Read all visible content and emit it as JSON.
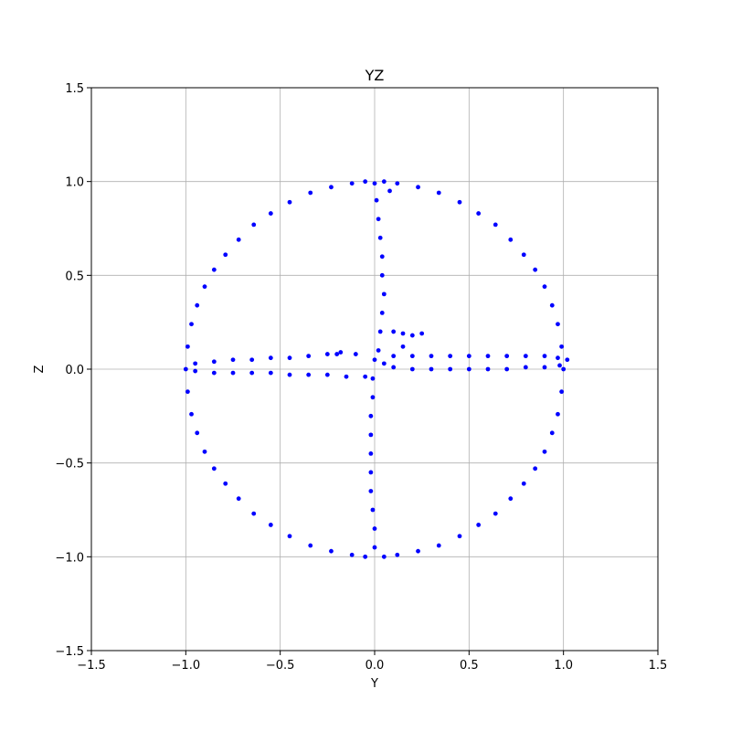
{
  "chart_data": {
    "type": "scatter",
    "title": "YZ",
    "xlabel": "Y",
    "ylabel": "Z",
    "xlim": [
      -1.5,
      1.5
    ],
    "ylim": [
      -1.5,
      1.5
    ],
    "xticks": [
      -1.5,
      -1.0,
      -0.5,
      0.0,
      0.5,
      1.0,
      1.5
    ],
    "yticks": [
      -1.5,
      -1.0,
      -0.5,
      0.0,
      0.5,
      1.0,
      1.5
    ],
    "xtick_labels": [
      "−1.5",
      "−1.0",
      "−0.5",
      "0.0",
      "0.5",
      "1.0",
      "1.5"
    ],
    "ytick_labels": [
      "−1.5",
      "−1.0",
      "−0.5",
      "0.0",
      "0.5",
      "1.0",
      "1.5"
    ],
    "grid": true,
    "marker_color": "#0000ff",
    "series": [
      {
        "points": [
          [
            1.0,
            0.0
          ],
          [
            0.99,
            0.12
          ],
          [
            0.97,
            0.24
          ],
          [
            0.94,
            0.34
          ],
          [
            0.9,
            0.44
          ],
          [
            0.85,
            0.53
          ],
          [
            0.79,
            0.61
          ],
          [
            0.72,
            0.69
          ],
          [
            0.64,
            0.77
          ],
          [
            0.55,
            0.83
          ],
          [
            0.45,
            0.89
          ],
          [
            0.34,
            0.94
          ],
          [
            0.23,
            0.97
          ],
          [
            0.12,
            0.99
          ],
          [
            0.05,
            1.0
          ],
          [
            -0.05,
            1.0
          ],
          [
            -0.12,
            0.99
          ],
          [
            -0.23,
            0.97
          ],
          [
            -0.34,
            0.94
          ],
          [
            -0.45,
            0.89
          ],
          [
            -0.55,
            0.83
          ],
          [
            -0.64,
            0.77
          ],
          [
            -0.72,
            0.69
          ],
          [
            -0.79,
            0.61
          ],
          [
            -0.85,
            0.53
          ],
          [
            -0.9,
            0.44
          ],
          [
            -0.94,
            0.34
          ],
          [
            -0.97,
            0.24
          ],
          [
            -0.99,
            0.12
          ],
          [
            -1.0,
            0.0
          ],
          [
            -0.99,
            -0.12
          ],
          [
            -0.97,
            -0.24
          ],
          [
            -0.94,
            -0.34
          ],
          [
            -0.9,
            -0.44
          ],
          [
            -0.85,
            -0.53
          ],
          [
            -0.79,
            -0.61
          ],
          [
            -0.72,
            -0.69
          ],
          [
            -0.64,
            -0.77
          ],
          [
            -0.55,
            -0.83
          ],
          [
            -0.45,
            -0.89
          ],
          [
            -0.34,
            -0.94
          ],
          [
            -0.23,
            -0.97
          ],
          [
            -0.12,
            -0.99
          ],
          [
            -0.05,
            -1.0
          ],
          [
            0.05,
            -1.0
          ],
          [
            0.12,
            -0.99
          ],
          [
            0.23,
            -0.97
          ],
          [
            0.34,
            -0.94
          ],
          [
            0.45,
            -0.89
          ],
          [
            0.55,
            -0.83
          ],
          [
            0.64,
            -0.77
          ],
          [
            0.72,
            -0.69
          ],
          [
            0.79,
            -0.61
          ],
          [
            0.85,
            -0.53
          ],
          [
            0.9,
            -0.44
          ],
          [
            0.94,
            -0.34
          ],
          [
            0.97,
            -0.24
          ],
          [
            0.99,
            -0.12
          ],
          [
            -0.95,
            0.03
          ],
          [
            -0.85,
            0.04
          ],
          [
            -0.75,
            0.05
          ],
          [
            -0.65,
            0.05
          ],
          [
            -0.55,
            0.06
          ],
          [
            -0.45,
            0.06
          ],
          [
            -0.35,
            0.07
          ],
          [
            -0.25,
            0.08
          ],
          [
            -0.18,
            0.09
          ],
          [
            -0.1,
            0.08
          ],
          [
            0.1,
            0.07
          ],
          [
            0.2,
            0.07
          ],
          [
            0.3,
            0.07
          ],
          [
            0.4,
            0.07
          ],
          [
            0.5,
            0.07
          ],
          [
            0.6,
            0.07
          ],
          [
            0.7,
            0.07
          ],
          [
            0.8,
            0.07
          ],
          [
            0.9,
            0.07
          ],
          [
            0.97,
            0.06
          ],
          [
            1.02,
            0.05
          ],
          [
            -0.95,
            -0.01
          ],
          [
            -0.85,
            -0.02
          ],
          [
            -0.75,
            -0.02
          ],
          [
            -0.65,
            -0.02
          ],
          [
            -0.55,
            -0.02
          ],
          [
            -0.45,
            -0.03
          ],
          [
            -0.35,
            -0.03
          ],
          [
            -0.25,
            -0.03
          ],
          [
            -0.15,
            -0.04
          ],
          [
            -0.05,
            -0.04
          ],
          [
            0.1,
            0.01
          ],
          [
            0.2,
            0.0
          ],
          [
            0.3,
            0.0
          ],
          [
            0.4,
            0.0
          ],
          [
            0.5,
            0.0
          ],
          [
            0.6,
            0.0
          ],
          [
            0.7,
            0.0
          ],
          [
            0.8,
            0.01
          ],
          [
            0.9,
            0.01
          ],
          [
            0.98,
            0.02
          ],
          [
            0.0,
            0.99
          ],
          [
            0.01,
            0.9
          ],
          [
            0.02,
            0.8
          ],
          [
            0.03,
            0.7
          ],
          [
            0.04,
            0.6
          ],
          [
            0.04,
            0.5
          ],
          [
            0.05,
            0.4
          ],
          [
            0.04,
            0.3
          ],
          [
            0.03,
            0.2
          ],
          [
            0.02,
            0.1
          ],
          [
            0.0,
            0.05
          ],
          [
            -0.01,
            -0.05
          ],
          [
            -0.01,
            -0.15
          ],
          [
            -0.02,
            -0.25
          ],
          [
            -0.02,
            -0.35
          ],
          [
            -0.02,
            -0.45
          ],
          [
            -0.02,
            -0.55
          ],
          [
            -0.02,
            -0.65
          ],
          [
            -0.01,
            -0.75
          ],
          [
            0.0,
            -0.85
          ],
          [
            0.0,
            -0.95
          ],
          [
            0.08,
            0.95
          ],
          [
            0.1,
            0.2
          ],
          [
            0.15,
            0.19
          ],
          [
            0.2,
            0.18
          ],
          [
            0.25,
            0.19
          ],
          [
            0.15,
            0.12
          ],
          [
            0.05,
            0.03
          ],
          [
            -0.2,
            0.08
          ]
        ]
      }
    ]
  }
}
